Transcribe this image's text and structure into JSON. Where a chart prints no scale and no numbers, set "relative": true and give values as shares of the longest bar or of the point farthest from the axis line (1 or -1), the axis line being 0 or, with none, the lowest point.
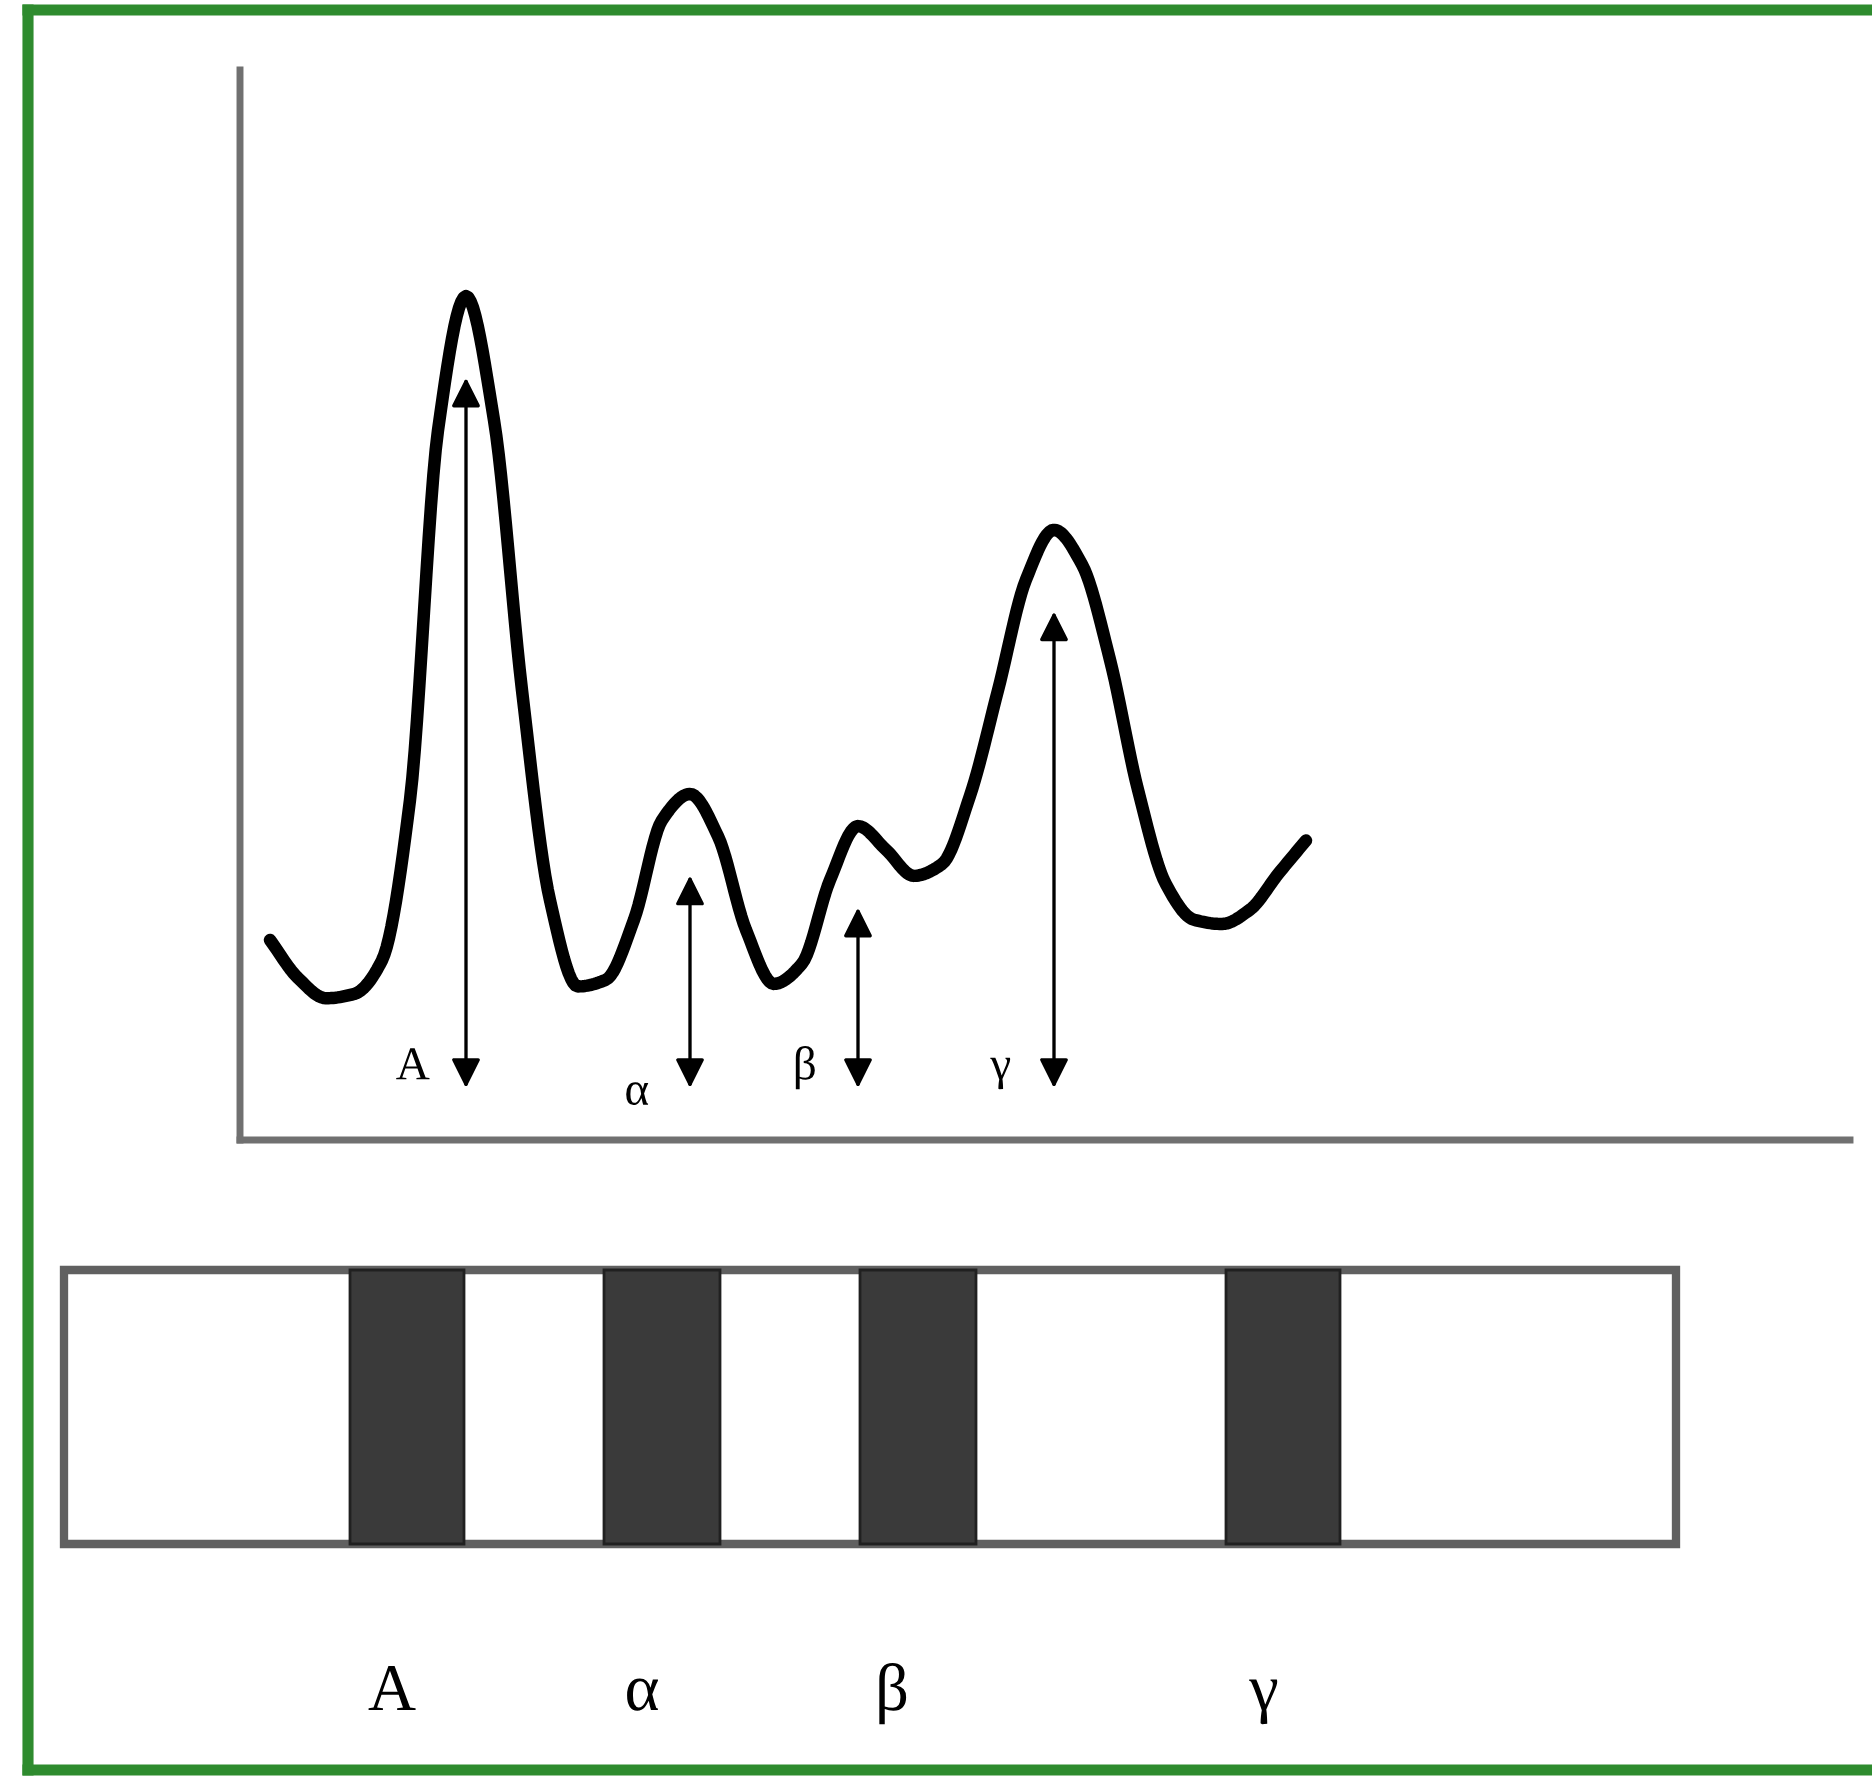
{
  "chart_data": {
    "type": "line",
    "relative": true,
    "categories": [
      null,
      null,
      null,
      null,
      null,
      null,
      null,
      null,
      null,
      null,
      null,
      null,
      null,
      null,
      null,
      null,
      null,
      null,
      null,
      null,
      null,
      null,
      null,
      null,
      null,
      null,
      null,
      null,
      null,
      null,
      null,
      null,
      null,
      null,
      null,
      null,
      null,
      null
    ],
    "series": [
      {
        "color": "#000000",
        "values": [
          0.237,
          0.192,
          0.168,
          0.173,
          0.213,
          0.403,
          0.841,
          1,
          0.853,
          0.533,
          0.284,
          0.182,
          0.19,
          0.261,
          0.379,
          0.41,
          0.36,
          0.249,
          0.185,
          0.209,
          0.308,
          0.372,
          0.344,
          0.313,
          0.327,
          0.408,
          0.533,
          0.664,
          0.723,
          0.682,
          0.569,
          0.415,
          0.303,
          0.261,
          0.256,
          0.273,
          0.315,
          0.355
        ]
      }
    ],
    "annotations": [
      "A",
      "α",
      "β",
      "γ",
      "A",
      "α",
      "β",
      "γ"
    ],
    "marker": "none",
    "line_style": "solid",
    "grid": false,
    "legend": false
  }
}
